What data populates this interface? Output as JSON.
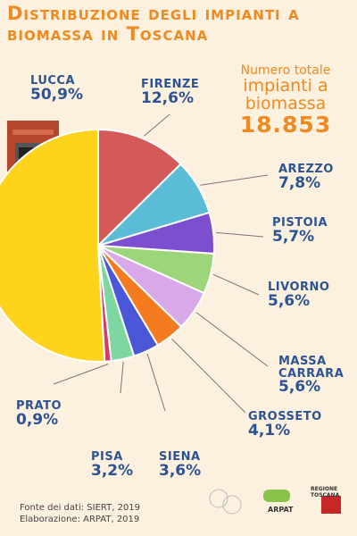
{
  "chart_data": {
    "type": "pie",
    "title": "Distribuzione degli impianti a biomassa in Toscana",
    "annotations": [
      "Numero totale",
      "impianti a",
      "biomassa",
      "18.853"
    ],
    "categories": [
      "Lucca",
      "Firenze",
      "Arezzo",
      "Pistoia",
      "Livorno",
      "Massa Carrara",
      "Grosseto",
      "Siena",
      "Pisa",
      "Prato"
    ],
    "values": [
      50.9,
      12.6,
      7.8,
      5.7,
      5.6,
      5.6,
      4.1,
      3.6,
      3.2,
      0.9
    ],
    "value_labels": [
      "50,9%",
      "12,6%",
      "7,8%",
      "5,7%",
      "5,6%",
      "5,6%",
      "4,1%",
      "3,6%",
      "3,2%",
      "0,9%"
    ],
    "colors": [
      "#fdd31c",
      "#d45a5a",
      "#5bbcd6",
      "#7b4fcf",
      "#9dd67a",
      "#d9a8e8",
      "#f47b20",
      "#4a57d6",
      "#7ed6a0",
      "#d63a6a"
    ],
    "source": [
      "Fonte dei dati: SIERT, 2019",
      "Elaborazione: ARPAT, 2019"
    ],
    "logos": [
      "ARPAT",
      "REGIONE TOSCANA"
    ]
  }
}
